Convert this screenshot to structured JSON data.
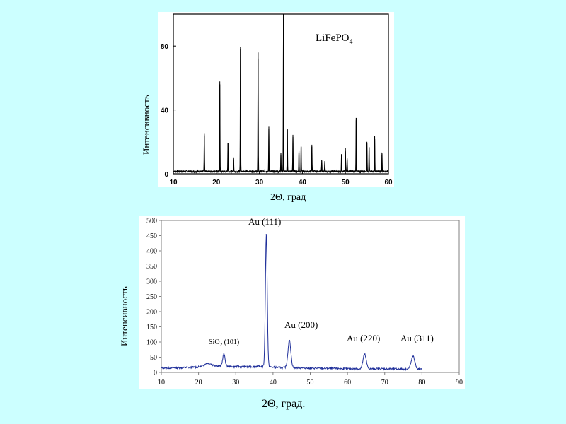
{
  "chart_data": [
    {
      "type": "line",
      "title": "LiFePO",
      "title_sub": "4",
      "xlabel": "2Θ, град",
      "ylabel": "Интенсивность",
      "xlim": [
        10,
        60
      ],
      "ylim": [
        0,
        100
      ],
      "x_ticks": [
        10,
        20,
        30,
        40,
        50,
        60
      ],
      "y_ticks": [
        0,
        40,
        80
      ],
      "line_color": "#000000",
      "background": "#ffffff",
      "baseline": 1.5,
      "peaks": [
        {
          "x": 17.2,
          "y": 24
        },
        {
          "x": 20.8,
          "y": 56
        },
        {
          "x": 22.7,
          "y": 19
        },
        {
          "x": 24.0,
          "y": 9
        },
        {
          "x": 25.6,
          "y": 78
        },
        {
          "x": 29.7,
          "y": 76
        },
        {
          "x": 32.2,
          "y": 28
        },
        {
          "x": 35.0,
          "y": 12
        },
        {
          "x": 35.6,
          "y": 100
        },
        {
          "x": 36.5,
          "y": 28
        },
        {
          "x": 37.8,
          "y": 23
        },
        {
          "x": 39.2,
          "y": 13
        },
        {
          "x": 39.7,
          "y": 17
        },
        {
          "x": 42.2,
          "y": 17
        },
        {
          "x": 44.5,
          "y": 7
        },
        {
          "x": 45.2,
          "y": 6
        },
        {
          "x": 49.1,
          "y": 12
        },
        {
          "x": 50.0,
          "y": 14
        },
        {
          "x": 50.4,
          "y": 9
        },
        {
          "x": 52.5,
          "y": 35
        },
        {
          "x": 55.0,
          "y": 19
        },
        {
          "x": 55.5,
          "y": 16
        },
        {
          "x": 56.8,
          "y": 22
        },
        {
          "x": 58.5,
          "y": 12
        }
      ]
    },
    {
      "type": "line",
      "xlabel": "2Θ, град.",
      "ylabel": "Интенсивность",
      "xlim": [
        10,
        90
      ],
      "ylim": [
        0,
        500
      ],
      "x_ticks": [
        10,
        20,
        30,
        40,
        50,
        60,
        70,
        80,
        90
      ],
      "y_ticks": [
        0,
        50,
        100,
        150,
        200,
        250,
        300,
        350,
        400,
        450,
        500
      ],
      "line_color": "#1f2f9a",
      "background": "#ffffff",
      "x_end": 80,
      "background_curve": [
        [
          10,
          15
        ],
        [
          15,
          15
        ],
        [
          20,
          18
        ],
        [
          24,
          22
        ],
        [
          28,
          20
        ],
        [
          33,
          18
        ],
        [
          36,
          20
        ],
        [
          42,
          16
        ],
        [
          50,
          14
        ],
        [
          60,
          12
        ],
        [
          70,
          12
        ],
        [
          80,
          10
        ]
      ],
      "peaks": [
        {
          "x": 22.5,
          "h": 10,
          "w": 1.2
        },
        {
          "x": 26.8,
          "h": 40,
          "w": 0.45
        },
        {
          "x": 38.2,
          "h": 435,
          "w": 0.35
        },
        {
          "x": 44.4,
          "h": 90,
          "w": 0.55
        },
        {
          "x": 64.6,
          "h": 48,
          "w": 0.6
        },
        {
          "x": 77.6,
          "h": 42,
          "w": 0.7
        }
      ],
      "annotations": [
        {
          "label": "SiO",
          "sub": "2",
          "suffix": " (101)"
        },
        {
          "label": "Au (111)"
        },
        {
          "label": "Au (200)"
        },
        {
          "label": "Au (220)"
        },
        {
          "label": "Au (311)"
        }
      ]
    }
  ]
}
